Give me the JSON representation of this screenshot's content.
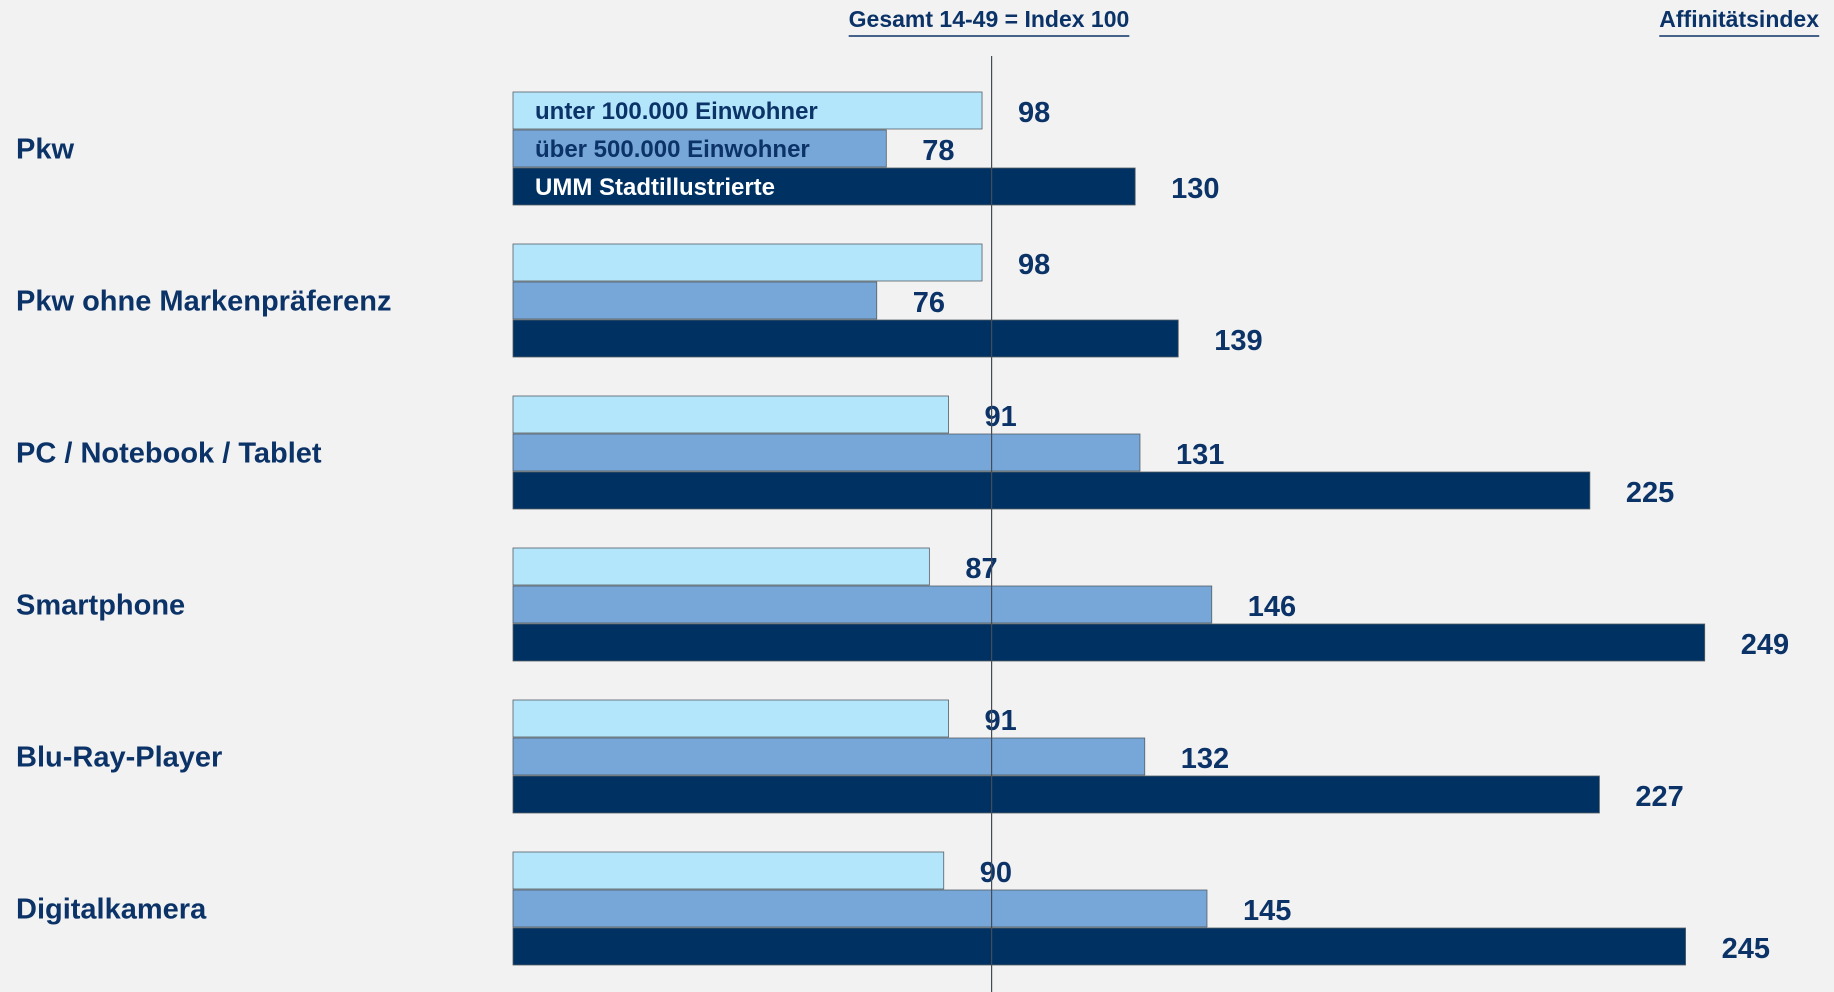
{
  "chart_data": {
    "type": "bar",
    "orientation": "horizontal",
    "reference_label": "Gesamt 14-49 = Index 100",
    "reference_value": 100,
    "axis_label": "Affinitätsindex",
    "categories": [
      "Pkw",
      "Pkw ohne Markenpräferenz",
      "PC / Notebook / Tablet",
      "Smartphone",
      "Blu-Ray-Player",
      "Digitalkamera"
    ],
    "series": [
      {
        "name": "unter 100.000 Einwohner",
        "color": "#b3e5fb",
        "values": [
          98,
          98,
          91,
          87,
          91,
          90
        ]
      },
      {
        "name": "über 500.000 Einwohner",
        "color": "#76a7d8",
        "values": [
          78,
          76,
          131,
          146,
          132,
          145
        ]
      },
      {
        "name": "UMM Stadtillustrierte",
        "color": "#003163",
        "values": [
          130,
          139,
          225,
          249,
          227,
          245
        ]
      }
    ],
    "xlim": [
      0,
      249
    ],
    "grid": false,
    "legend_placement": "inside-first-group"
  }
}
